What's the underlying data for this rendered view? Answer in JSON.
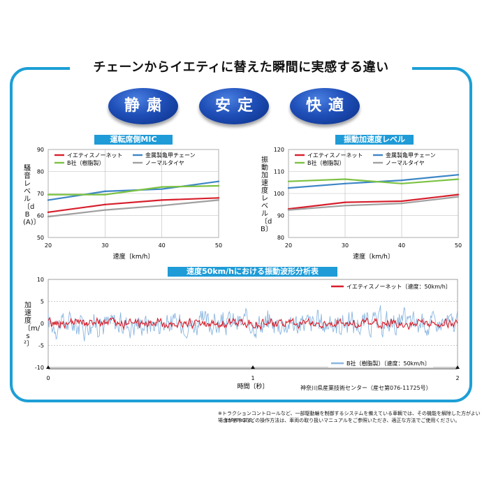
{
  "headline": "チェーンからイエティに替えた瞬間に実感する違い",
  "badges": [
    "静粛",
    "安定",
    "快適"
  ],
  "chart1": {
    "title": "運転席側MIC",
    "ylabel": "騒音レベル〔dB(A)〕",
    "xlabel": "速度〔km/h〕"
  },
  "chart2": {
    "title": "振動加速度レベル",
    "ylabel": "振動加速度レベル〔dB〕",
    "xlabel": "速度〔km/h〕"
  },
  "chart3": {
    "title": "速度50km/hにおける振動波形分析表",
    "ylabel": "加速度〔m/s²〕",
    "xlabel": "時間〔秒〕"
  },
  "source": "神奈川県産業技術センター（産セ第076-11725号）",
  "footnotes": [
    "※トラクションコントロールなど、一部駆動輪を制御するシステムを備えている車輌では、その機能を解除した方がよい場合があります。",
    "ESP/TRCなどの操作方法は、車両の取り扱いマニュアルをご参照いただき、適正な方法でご使用ください。"
  ],
  "colors": {
    "frame": "#1d9fd6",
    "red": "#d71f2c",
    "blue": "#3d86c6",
    "green": "#7cc242",
    "gray": "#a0a0a0",
    "lightblue": "#8ab6e0"
  },
  "chart_data": [
    {
      "type": "line",
      "title": "運転席側MIC",
      "xlabel": "速度〔km/h〕",
      "ylabel": "騒音レベル〔dB(A)〕",
      "x": [
        20,
        30,
        40,
        50
      ],
      "xlim": [
        20,
        50
      ],
      "ylim": [
        50,
        90
      ],
      "xticks": [
        20,
        30,
        40,
        50
      ],
      "yticks": [
        50,
        60,
        70,
        80,
        90
      ],
      "grid": true,
      "legend": "top",
      "series": [
        {
          "name": "イエティスノーネット",
          "color": "#d71f2c",
          "values": [
            61.5,
            65,
            67,
            68
          ]
        },
        {
          "name": "金属製亀甲チェーン",
          "color": "#3d86c6",
          "values": [
            67,
            71,
            72,
            75.5
          ]
        },
        {
          "name": "B社（樹脂製）",
          "color": "#7cc242",
          "values": [
            69.5,
            69.5,
            73,
            73.5
          ]
        },
        {
          "name": "ノーマルタイヤ",
          "color": "#a0a0a0",
          "values": [
            59.5,
            62.5,
            64.5,
            67
          ]
        }
      ]
    },
    {
      "type": "line",
      "title": "振動加速度レベル",
      "xlabel": "速度〔km/h〕",
      "ylabel": "振動加速度レベル〔dB〕",
      "x": [
        20,
        30,
        40,
        50
      ],
      "xlim": [
        20,
        50
      ],
      "ylim": [
        80,
        120
      ],
      "xticks": [
        20,
        30,
        40,
        50
      ],
      "yticks": [
        80,
        90,
        100,
        110,
        120
      ],
      "grid": true,
      "legend": "top",
      "series": [
        {
          "name": "イエティスノーネット",
          "color": "#d71f2c",
          "values": [
            93,
            96,
            96.5,
            99.5
          ]
        },
        {
          "name": "金属製亀甲チェーン",
          "color": "#3d86c6",
          "values": [
            102.5,
            104.5,
            106,
            108.5
          ]
        },
        {
          "name": "B社（樹脂製）",
          "color": "#7cc242",
          "values": [
            105.5,
            106.5,
            104.5,
            106.5
          ]
        },
        {
          "name": "ノーマルタイヤ",
          "color": "#a0a0a0",
          "values": [
            92.5,
            94.5,
            95.5,
            98.5
          ]
        }
      ]
    },
    {
      "type": "line",
      "title": "速度50km/hにおける振動波形分析表",
      "xlabel": "時間〔秒〕",
      "ylabel": "加速度〔m/s²〕",
      "xlim": [
        0,
        2
      ],
      "ylim": [
        -10,
        10
      ],
      "xticks": [
        0,
        1,
        2
      ],
      "yticks": [
        -10,
        -5,
        0,
        5,
        10
      ],
      "grid": true,
      "legend": "top-right / bottom-right",
      "series": [
        {
          "name": "イエティスノーネット〔速度：50km/h〕",
          "color": "#d71f2c",
          "amplitude": 2
        },
        {
          "name": "B社（樹脂製）〔速度：50km/h〕",
          "color": "#8ab6e0",
          "amplitude": 5.5
        }
      ]
    }
  ]
}
